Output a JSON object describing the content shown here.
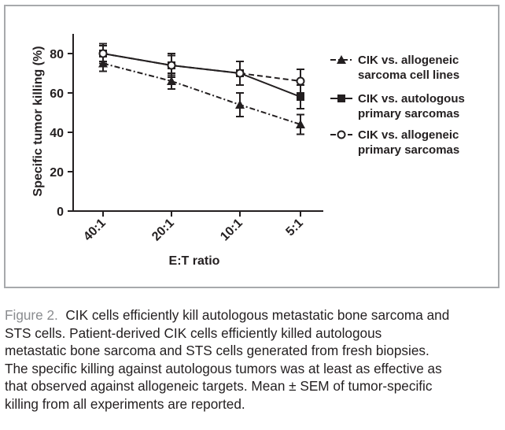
{
  "chart_data": {
    "type": "line",
    "categories": [
      "40:1",
      "20:1",
      "10:1",
      "5:1"
    ],
    "xlabel": "E:T ratio",
    "ylabel": "Specific tumor killing (%)",
    "ylim": [
      0,
      90
    ],
    "yticks": [
      0,
      20,
      40,
      60,
      80
    ],
    "grid": false,
    "legend_position": "right",
    "series": [
      {
        "name_lines": [
          "CIK vs. allogeneic",
          "sarcoma cell lines"
        ],
        "marker": "triangle-filled",
        "line_style": "dash-dot",
        "values": [
          75,
          66,
          54,
          44
        ],
        "errors": [
          4,
          4,
          6,
          5
        ]
      },
      {
        "name_lines": [
          "CIK vs. autologous",
          "primary sarcomas"
        ],
        "marker": "square-filled",
        "line_style": "solid",
        "values": [
          80,
          74,
          70,
          58
        ],
        "errors": [
          5,
          6,
          6,
          6
        ]
      },
      {
        "name_lines": [
          "CIK vs. allogeneic",
          "primary sarcomas"
        ],
        "marker": "circle-open",
        "line_style": "dashed",
        "values": [
          80,
          74,
          70,
          66
        ],
        "errors": [
          4,
          5,
          6,
          6
        ]
      }
    ]
  },
  "caption": {
    "label": "Figure 2.",
    "lines": [
      "CIK cells efficiently kill autologous metastatic bone sarcoma and",
      "STS cells. Patient-derived CIK cells efficiently killed autologous",
      "metastatic bone sarcoma and STS cells generated from fresh biopsies.",
      "The specific killing against autologous tumors was at least as effective as",
      "that observed against allogeneic targets. Mean ± SEM of tumor-specific",
      "killing from all experiments are reported."
    ]
  },
  "colors": {
    "ink": "#231f20",
    "frame": "#a7a9ac",
    "caption_label": "#8a8c8f"
  }
}
